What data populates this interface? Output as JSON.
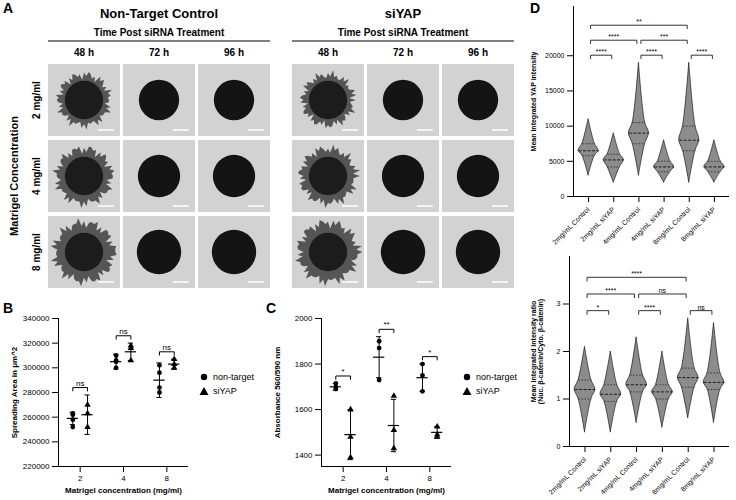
{
  "chart_data": [
    {
      "panel": "A",
      "type": "image_grid",
      "row_title": "Matrigel Concentration",
      "rows": [
        "2 mg/ml",
        "4 mg/ml",
        "8 mg/ml"
      ],
      "groups": [
        {
          "title": "Non-Target Control",
          "subtitle": "Time Post siRNA Treatment",
          "columns": [
            "48 h",
            "72 h",
            "96 h"
          ]
        },
        {
          "title": "siYAP",
          "subtitle": "Time Post siRNA Treatment",
          "columns": [
            "48 h",
            "72 h",
            "96 h"
          ]
        }
      ]
    },
    {
      "panel": "B",
      "type": "scatter",
      "xlabel": "Matrigel concentration (mg/ml)",
      "ylabel": "Spreading Area in μm^2",
      "categories": [
        "2",
        "4",
        "8"
      ],
      "ylim": [
        220000,
        340000
      ],
      "yticks": [
        220000,
        240000,
        260000,
        280000,
        300000,
        320000,
        340000
      ],
      "legend": "right",
      "series": [
        {
          "name": "non-target",
          "color": "#000000",
          "marker": "circle",
          "values": [
            259000,
            305000,
            290000
          ],
          "errors": [
            5000,
            6000,
            14000
          ],
          "points": [
            [
              263000,
              258000,
              252000,
              262000
            ],
            [
              300000,
              305000,
              310000,
              306000
            ],
            [
              280000,
              284000,
              296000,
              302000
            ]
          ]
        },
        {
          "name": "siYAP",
          "color": "#000000",
          "marker": "triangle",
          "values": [
            262000,
            313000,
            303000
          ],
          "errors": [
            16000,
            7000,
            4000
          ],
          "points": [
            [
              270000,
              263000,
              252000
            ],
            [
              306000,
              318000,
              316000
            ],
            [
              303000,
              300000,
              307000
            ]
          ]
        }
      ],
      "comparisons": [
        {
          "category": "2",
          "label": "ns"
        },
        {
          "category": "4",
          "label": "ns"
        },
        {
          "category": "8",
          "label": "ns"
        }
      ]
    },
    {
      "panel": "C",
      "type": "scatter",
      "xlabel": "Matrigel concentration (mg/ml)",
      "ylabel": "Absorbance 560/590 nm",
      "categories": [
        "2",
        "4",
        "8"
      ],
      "ylim": [
        1350,
        2000
      ],
      "yticks": [
        1400,
        1600,
        1800,
        2000
      ],
      "legend": "right",
      "series": [
        {
          "name": "non-target",
          "color": "#000000",
          "marker": "circle",
          "values": [
            1700,
            1830,
            1740
          ],
          "errors": [
            15,
            90,
            60
          ],
          "points": [
            [
              1700,
              1715,
              1690
            ],
            [
              1900,
              1870,
              1730
            ],
            [
              1800,
              1750,
              1680
            ]
          ]
        },
        {
          "name": "siYAP",
          "color": "#000000",
          "marker": "triangle",
          "values": [
            1490,
            1530,
            1500
          ],
          "errors": [
            110,
            115,
            25
          ],
          "points": [
            [
              1600,
              1390,
              1480
            ],
            [
              1660,
              1510,
              1430
            ],
            [
              1525,
              1490,
              1480
            ]
          ]
        }
      ],
      "comparisons": [
        {
          "category": "2",
          "label": "*"
        },
        {
          "category": "4",
          "label": "**"
        },
        {
          "category": "8",
          "label": "*"
        }
      ]
    },
    {
      "panel": "D",
      "type": "violin",
      "ylabel": "Mean integrated YAP intensity",
      "categories": [
        "2mg/mL Control",
        "2mg/mL siYAP",
        "4mg/mL Control",
        "4mg/mL siYAP",
        "8mg/mL Control",
        "8mg/mL siYAP"
      ],
      "ylim": [
        0,
        27000
      ],
      "yticks": [
        0,
        5000,
        10000,
        15000,
        20000
      ],
      "color": "#8c8c8c",
      "violins": {
        "min": [
          3000,
          2000,
          3000,
          2000,
          2000,
          2000
        ],
        "q1": [
          5800,
          4200,
          7500,
          3500,
          6500,
          3500
        ],
        "median": [
          6500,
          5200,
          9000,
          4200,
          8000,
          4200
        ],
        "q3": [
          7500,
          6000,
          10500,
          5000,
          10000,
          5000
        ],
        "max": [
          11000,
          9000,
          19000,
          8000,
          19000,
          8000
        ]
      },
      "comparisons": [
        {
          "pair": [
            "2mg/mL Control",
            "8mg/mL Control"
          ],
          "label": "**"
        },
        {
          "pair": [
            "2mg/mL Control",
            "4mg/mL Control"
          ],
          "label": "****"
        },
        {
          "pair": [
            "4mg/mL Control",
            "8mg/mL Control"
          ],
          "label": "***"
        },
        {
          "pair": [
            "2mg/mL Control",
            "2mg/mL siYAP"
          ],
          "label": "****"
        },
        {
          "pair": [
            "4mg/mL Control",
            "4mg/mL siYAP"
          ],
          "label": "****"
        },
        {
          "pair": [
            "8mg/mL Control",
            "8mg/mL siYAP"
          ],
          "label": "****"
        }
      ]
    },
    {
      "type": "violin",
      "ylabel": "Mean integrated intensity ratio (Nuc. β-catenin/Cyto. β-catenin)",
      "categories": [
        "2mg/mL Control",
        "2mg/mL siYAP",
        "4mg/mL Control",
        "4mg/mL siYAP",
        "8mg/mL Control",
        "8mg/mL siYAP"
      ],
      "ylim": [
        0,
        4
      ],
      "yticks": [
        0,
        1,
        2,
        3
      ],
      "color": "#8c8c8c",
      "violins": {
        "min": [
          0.3,
          0.3,
          0.5,
          0.4,
          0.6,
          0.5
        ],
        "q1": [
          1.0,
          0.95,
          1.15,
          1.0,
          1.25,
          1.2
        ],
        "median": [
          1.2,
          1.1,
          1.3,
          1.15,
          1.45,
          1.35
        ],
        "q3": [
          1.4,
          1.3,
          1.5,
          1.3,
          1.65,
          1.55
        ],
        "max": [
          2.1,
          2.0,
          2.3,
          2.0,
          2.7,
          2.6
        ]
      },
      "comparisons": [
        {
          "pair": [
            "2mg/mL Control",
            "8mg/mL Control"
          ],
          "label": "****"
        },
        {
          "pair": [
            "2mg/mL Control",
            "4mg/mL Control"
          ],
          "label": "****"
        },
        {
          "pair": [
            "4mg/mL Control",
            "8mg/mL Control"
          ],
          "label": "ns"
        },
        {
          "pair": [
            "2mg/mL Control",
            "2mg/mL siYAP"
          ],
          "label": "*"
        },
        {
          "pair": [
            "4mg/mL Control",
            "4mg/mL siYAP"
          ],
          "label": "****"
        },
        {
          "pair": [
            "8mg/mL Control",
            "8mg/mL siYAP"
          ],
          "label": "ns"
        }
      ]
    }
  ]
}
